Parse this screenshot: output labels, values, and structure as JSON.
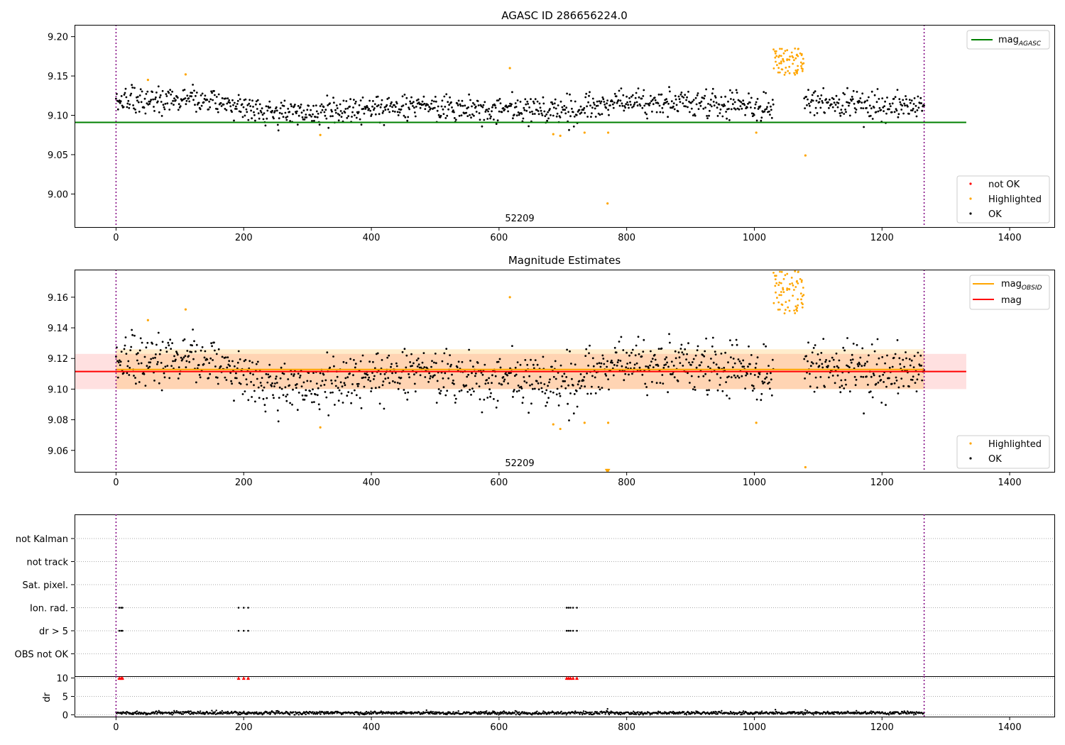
{
  "figure": {
    "obsid_label": "52209"
  },
  "chart_data": [
    {
      "type": "scatter",
      "title": "AGASC ID 286656224.0",
      "xlim": [
        -65,
        1470
      ],
      "ylim": [
        8.958,
        9.215
      ],
      "x_ticks": [
        0,
        200,
        400,
        600,
        800,
        1000,
        1200,
        1400
      ],
      "y_ticks": [
        9.0,
        9.05,
        9.1,
        9.15,
        9.2
      ],
      "obsid_boundaries": [
        0,
        1266
      ],
      "obsid_label": {
        "text": "52209",
        "x": 633
      },
      "reference_lines": [
        {
          "name": "mag_AGASC",
          "y": 9.091,
          "x_range": [
            -65,
            1332
          ],
          "color": "#008000"
        }
      ],
      "legend_top": [
        {
          "label": "mag",
          "sub": "AGASC",
          "color": "#008000",
          "kind": "line"
        }
      ],
      "legend_bottom": [
        {
          "label": "not OK",
          "color": "#ff0000",
          "kind": "marker"
        },
        {
          "label": "Highlighted",
          "color": "#ffa500",
          "kind": "marker"
        },
        {
          "label": "OK",
          "color": "#000000",
          "kind": "marker"
        }
      ],
      "series": [
        {
          "status": "OK",
          "color": "#000000",
          "n_points": 1180,
          "x_range": [
            0,
            1266
          ],
          "mean": 9.112,
          "scatter": 0.011,
          "trend": [
            [
              0,
              9.118
            ],
            [
              120,
              9.12
            ],
            [
              260,
              9.102
            ],
            [
              450,
              9.11
            ],
            [
              700,
              9.106
            ],
            [
              800,
              9.118
            ],
            [
              1000,
              9.112
            ],
            [
              1080,
              9.118
            ],
            [
              1266,
              9.11
            ]
          ]
        },
        {
          "status": "Highlighted",
          "color": "#ffa500",
          "burst": {
            "x_range": [
              1030,
              1078
            ],
            "y_range": [
              9.14,
              9.185
            ],
            "n_points": 70
          },
          "outliers": [
            [
              50,
              9.145
            ],
            [
              109,
              9.152
            ],
            [
              320,
              9.075
            ],
            [
              617,
              9.16
            ],
            [
              685,
              9.076
            ],
            [
              696,
              9.074
            ],
            [
              734,
              9.078
            ],
            [
              770,
              8.988
            ],
            [
              771,
              9.078
            ],
            [
              1003,
              9.078
            ],
            [
              1080,
              9.049
            ]
          ]
        }
      ]
    },
    {
      "type": "scatter",
      "title": "Magnitude Estimates",
      "xlim": [
        -65,
        1470
      ],
      "ylim": [
        9.046,
        9.178
      ],
      "x_ticks": [
        0,
        200,
        400,
        600,
        800,
        1000,
        1200,
        1400
      ],
      "y_ticks": [
        9.06,
        9.08,
        9.1,
        9.12,
        9.14,
        9.16
      ],
      "obsid_boundaries": [
        0,
        1266
      ],
      "obsid_label": {
        "text": "52209",
        "x": 633
      },
      "reference_lines": [
        {
          "name": "mag_OBSID",
          "y": 9.1128,
          "x_range": [
            0,
            1266
          ],
          "color": "#ffa500"
        },
        {
          "name": "mag",
          "y": 9.1115,
          "x_range": [
            -65,
            1332
          ],
          "color": "#ff0000"
        }
      ],
      "bands": [
        {
          "y_range": [
            9.1,
            9.123
          ],
          "x_range": [
            -65,
            1332
          ],
          "color": "#ff0000",
          "opacity": 0.12
        },
        {
          "y_range": [
            9.1,
            9.126
          ],
          "x_range": [
            0,
            1266
          ],
          "color": "#ffa500",
          "opacity": 0.2
        }
      ],
      "legend_top": [
        {
          "label": "mag",
          "sub": "OBSID",
          "color": "#ffa500",
          "kind": "line"
        },
        {
          "label": "mag",
          "sub": "",
          "color": "#ff0000",
          "kind": "line"
        }
      ],
      "legend_bottom": [
        {
          "label": "Highlighted",
          "color": "#ffa500",
          "kind": "marker"
        },
        {
          "label": "OK",
          "color": "#000000",
          "kind": "marker"
        }
      ],
      "series": [
        {
          "status": "OK",
          "color": "#000000",
          "n_points": 1180,
          "x_range": [
            0,
            1266
          ],
          "mean": 9.112,
          "scatter": 0.011,
          "trend": [
            [
              0,
              9.118
            ],
            [
              120,
              9.12
            ],
            [
              260,
              9.1
            ],
            [
              450,
              9.11
            ],
            [
              700,
              9.104
            ],
            [
              800,
              9.118
            ],
            [
              1000,
              9.112
            ],
            [
              1080,
              9.116
            ],
            [
              1266,
              9.11
            ]
          ]
        },
        {
          "status": "Highlighted",
          "color": "#ffa500",
          "burst": {
            "x_range": [
              1030,
              1078
            ],
            "y_range": [
              9.14,
              9.177
            ],
            "n_points": 70
          },
          "outliers": [
            [
              50,
              9.145
            ],
            [
              109,
              9.152
            ],
            [
              320,
              9.075
            ],
            [
              617,
              9.16
            ],
            [
              685,
              9.077
            ],
            [
              696,
              9.074
            ],
            [
              734,
              9.078
            ],
            [
              771,
              9.078
            ],
            [
              1003,
              9.078
            ],
            [
              1080,
              9.049
            ]
          ],
          "off_scale_markers": [
            [
              769,
              9.047
            ],
            [
              771,
              9.047
            ]
          ]
        }
      ]
    },
    {
      "type": "scatter",
      "title": "",
      "xlim": [
        -65,
        1470
      ],
      "categories": [
        "not Kalman",
        "not track",
        "Sat. pixel.",
        "Ion. rad.",
        "dr > 5",
        "OBS not OK"
      ],
      "obsid_boundaries": [
        0,
        1266
      ],
      "flags": {
        "Ion. rad.": [
          5,
          8,
          10,
          192,
          200,
          207,
          706,
          709,
          712,
          716,
          722
        ],
        "dr > 5": [
          5,
          8,
          10,
          192,
          200,
          207,
          706,
          709,
          712,
          716,
          722
        ]
      }
    },
    {
      "type": "scatter",
      "title": "",
      "xlabel": "",
      "ylabel": "dr",
      "xlim": [
        -65,
        1470
      ],
      "ylim": [
        -0.5,
        10.5
      ],
      "x_ticks": [
        0,
        200,
        400,
        600,
        800,
        1000,
        1200,
        1400
      ],
      "y_ticks": [
        0,
        5,
        10
      ],
      "obsid_boundaries": [
        0,
        1266
      ],
      "clipped_markers": {
        "y": 10,
        "color": "#ff0000",
        "x": [
          5,
          8,
          10,
          192,
          200,
          207,
          706,
          709,
          712,
          716,
          722
        ]
      },
      "series": [
        {
          "name": "",
          "color": "#000000",
          "n_points": 1266,
          "x_range": [
            0,
            1266
          ],
          "mean": 0.5,
          "scatter": 0.22,
          "outliers": [
            [
              770,
              1.6
            ],
            [
              1033,
              1.4
            ],
            [
              1080,
              1.3
            ]
          ]
        }
      ]
    }
  ]
}
